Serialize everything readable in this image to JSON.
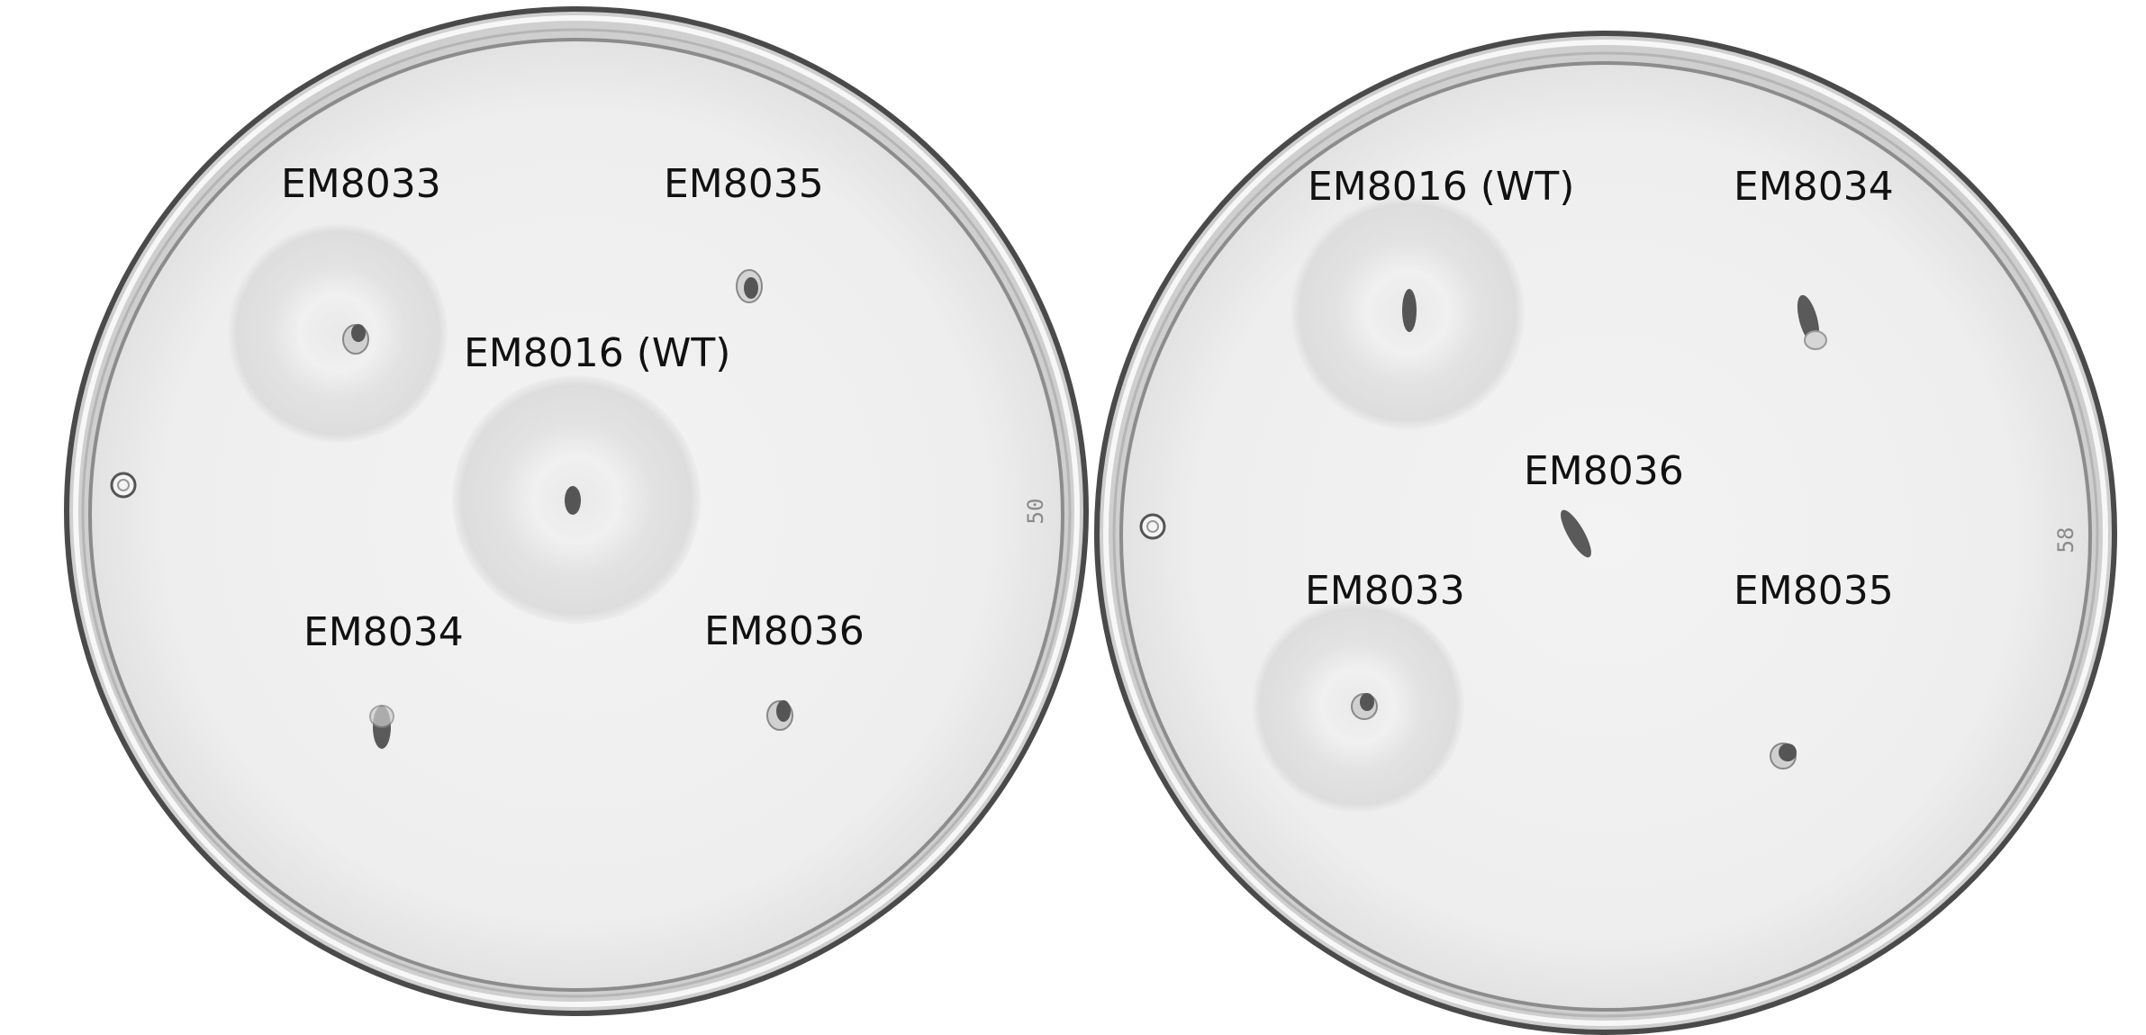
{
  "plates": [
    {
      "id": "left",
      "plate_number": "50",
      "colonies": [
        {
          "label": "EM8033",
          "halo": true
        },
        {
          "label": "EM8035",
          "halo": false
        },
        {
          "label": "EM8016 (WT)",
          "halo": true
        },
        {
          "label": "EM8034",
          "halo": false
        },
        {
          "label": "EM8036",
          "halo": false
        }
      ]
    },
    {
      "id": "right",
      "plate_number": "58",
      "colonies": [
        {
          "label": "EM8016 (WT)",
          "halo": true
        },
        {
          "label": "EM8034",
          "halo": false
        },
        {
          "label": "EM8036",
          "halo": false
        },
        {
          "label": "EM8033",
          "halo": true
        },
        {
          "label": "EM8035",
          "halo": false
        }
      ]
    }
  ],
  "colors": {
    "background": "#ffffff",
    "agar": "#f1f1f1",
    "rim": "#7a7a7a",
    "halo": "#dedede",
    "colony": "#555555",
    "label": "#111111"
  }
}
